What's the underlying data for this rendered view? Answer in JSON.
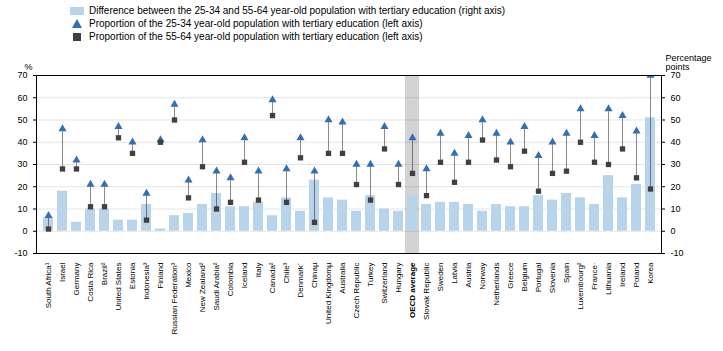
{
  "chart_data": {
    "type": "bar",
    "categories": [
      "South Africa¹",
      "Israel",
      "Germany",
      "Costa Rica",
      "Brazil²",
      "United States",
      "Estonia",
      "Indonesia³",
      "Finland",
      "Russian Federation³",
      "Mexico",
      "New Zealand²",
      "Saudi Arabia²",
      "Colombia",
      "Iceland",
      "Italy",
      "Canada²",
      "Chile³",
      "Denmark´",
      "Chinaµ",
      "United Kingdomµ",
      "Australia",
      "Czech Republic",
      "Turkey",
      "Switzerland",
      "Hungary",
      "OECD average",
      "Slovak Republic",
      "Sweden",
      "Latvia",
      "Austria",
      "Norway",
      "Netherlands",
      "Greece",
      "Belgium",
      "Portugal",
      "Slovenia",
      "Spain",
      "Luxembourg²",
      "France·",
      "Lithuania",
      "Ireland",
      "Poland",
      "Korea"
    ],
    "series": [
      {
        "name": "Difference between the 25-34 and 55-64 year-old population with tertiary education (right axis)",
        "type": "bar",
        "color": "#b8d4ea",
        "axis": "y2",
        "values": [
          6,
          18,
          4,
          10,
          10,
          5,
          5,
          12,
          1,
          7,
          8,
          12,
          17,
          11,
          11,
          13,
          7,
          15,
          9,
          23,
          15,
          14,
          9,
          16,
          10,
          9,
          16,
          12,
          13,
          13,
          12,
          9,
          12,
          11,
          11,
          16,
          14,
          17,
          15,
          12,
          25,
          15,
          21,
          51
        ]
      },
      {
        "name": "Proportion of the 25-34 year-old population with tertiary education (left axis)",
        "type": "scatter",
        "marker": "triangle",
        "color": "#3070b3",
        "values": [
          7,
          46,
          32,
          21,
          21,
          47,
          40,
          17,
          41,
          57,
          23,
          41,
          27,
          24,
          42,
          27,
          59,
          28,
          42,
          27,
          50,
          49,
          30,
          30,
          47,
          30,
          42,
          28,
          44,
          35,
          43,
          50,
          44,
          40,
          47,
          34,
          40,
          44,
          55,
          43,
          55,
          52,
          45,
          70
        ]
      },
      {
        "name": "Proportion of the 55-64 year-old population with tertiary education (left axis)",
        "type": "scatter",
        "marker": "square",
        "color": "#404040",
        "values": [
          1,
          28,
          28,
          11,
          11,
          42,
          35,
          5,
          40,
          50,
          15,
          29,
          10,
          13,
          31,
          14,
          52,
          13,
          33,
          4,
          35,
          35,
          21,
          14,
          37,
          21,
          26,
          16,
          31,
          22,
          31,
          41,
          32,
          29,
          36,
          18,
          26,
          27,
          40,
          31,
          30,
          37,
          24,
          19
        ]
      }
    ],
    "ylabel": "%",
    "y2label": "Percentage\npoints",
    "ylim": [
      -10,
      70
    ],
    "yticks": [
      -10,
      0,
      10,
      20,
      30,
      40,
      50,
      60,
      70
    ],
    "y2lim": [
      -10,
      70
    ],
    "y2ticks": [
      -10,
      0,
      10,
      20,
      30,
      40,
      50,
      60,
      70
    ],
    "highlight": {
      "category": "OECD average",
      "color": "#d3d3d3"
    },
    "grid": true,
    "legend": "top"
  }
}
